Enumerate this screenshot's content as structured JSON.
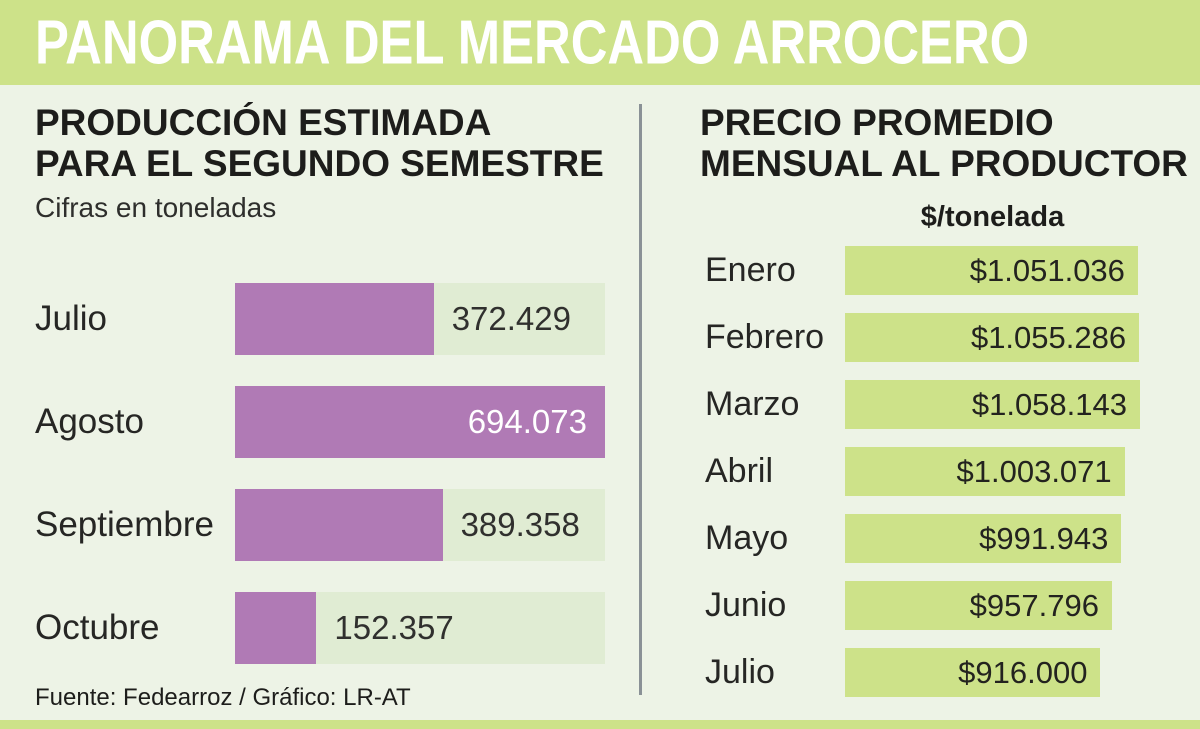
{
  "header": {
    "title": "PANORAMA DEL MERCADO ARROCERO"
  },
  "colors": {
    "band_green": "#cde289",
    "page_bg": "#edf3e6",
    "track": "#e0ecd3",
    "purple": "#b07ab5",
    "divider": "#8a9196",
    "text_dark": "#1d1d1b"
  },
  "production": {
    "title_line1": "PRODUCCIÓN ESTIMADA",
    "title_line2": "PARA EL SEGUNDO SEMESTRE",
    "subtitle": "Cifras en toneladas",
    "bars": [
      {
        "label": "Julio",
        "value": "372.429",
        "pct": 53.7
      },
      {
        "label": "Agosto",
        "value": "694.073",
        "pct": 100
      },
      {
        "label": "Septiembre",
        "value": "389.358",
        "pct": 56.1
      },
      {
        "label": "Octubre",
        "value": "152.357",
        "pct": 22.0
      }
    ]
  },
  "prices": {
    "title_line1": "PRECIO PROMEDIO",
    "title_line2": "MENSUAL AL PRODUCTOR",
    "unit": "$/tonelada",
    "rows": [
      {
        "label": "Enero",
        "value": "$1.051.036",
        "pct": 99.3
      },
      {
        "label": "Febrero",
        "value": "$1.055.286",
        "pct": 99.7
      },
      {
        "label": "Marzo",
        "value": "$1.058.143",
        "pct": 100
      },
      {
        "label": "Abril",
        "value": "$1.003.071",
        "pct": 94.8
      },
      {
        "label": "Mayo",
        "value": "$991.943",
        "pct": 93.7
      },
      {
        "label": "Junio",
        "value": "$957.796",
        "pct": 90.5
      },
      {
        "label": "Julio",
        "value": "$916.000",
        "pct": 86.6
      }
    ]
  },
  "footer": {
    "source": "Fuente:  Fedearroz / Gráfico: LR-AT"
  },
  "chart_data": [
    {
      "type": "bar",
      "orientation": "horizontal",
      "title": "PRODUCCIÓN ESTIMADA PARA EL SEGUNDO SEMESTRE",
      "subtitle": "Cifras en toneladas",
      "unit": "toneladas",
      "categories": [
        "Julio",
        "Agosto",
        "Septiembre",
        "Octubre"
      ],
      "values": [
        372429,
        694073,
        389358,
        152357
      ],
      "value_labels": [
        "372.429",
        "694.073",
        "389.358",
        "152.357"
      ],
      "xlim": [
        0,
        694073
      ],
      "bar_color": "#b07ab5",
      "track_color": "#e0ecd3",
      "grid": false,
      "legend": false
    },
    {
      "type": "bar",
      "orientation": "horizontal",
      "title": "PRECIO PROMEDIO MENSUAL AL PRODUCTOR",
      "unit": "$/tonelada",
      "categories": [
        "Enero",
        "Febrero",
        "Marzo",
        "Abril",
        "Mayo",
        "Junio",
        "Julio"
      ],
      "values": [
        1051036,
        1055286,
        1058143,
        1003071,
        991943,
        957796,
        916000
      ],
      "value_labels": [
        "$1.051.036",
        "$1.055.286",
        "$1.058.143",
        "$1.003.071",
        "$991.943",
        "$957.796",
        "$916.000"
      ],
      "xlim": [
        0,
        1058143
      ],
      "bar_color": "#cde289",
      "grid": false,
      "legend": false
    }
  ]
}
